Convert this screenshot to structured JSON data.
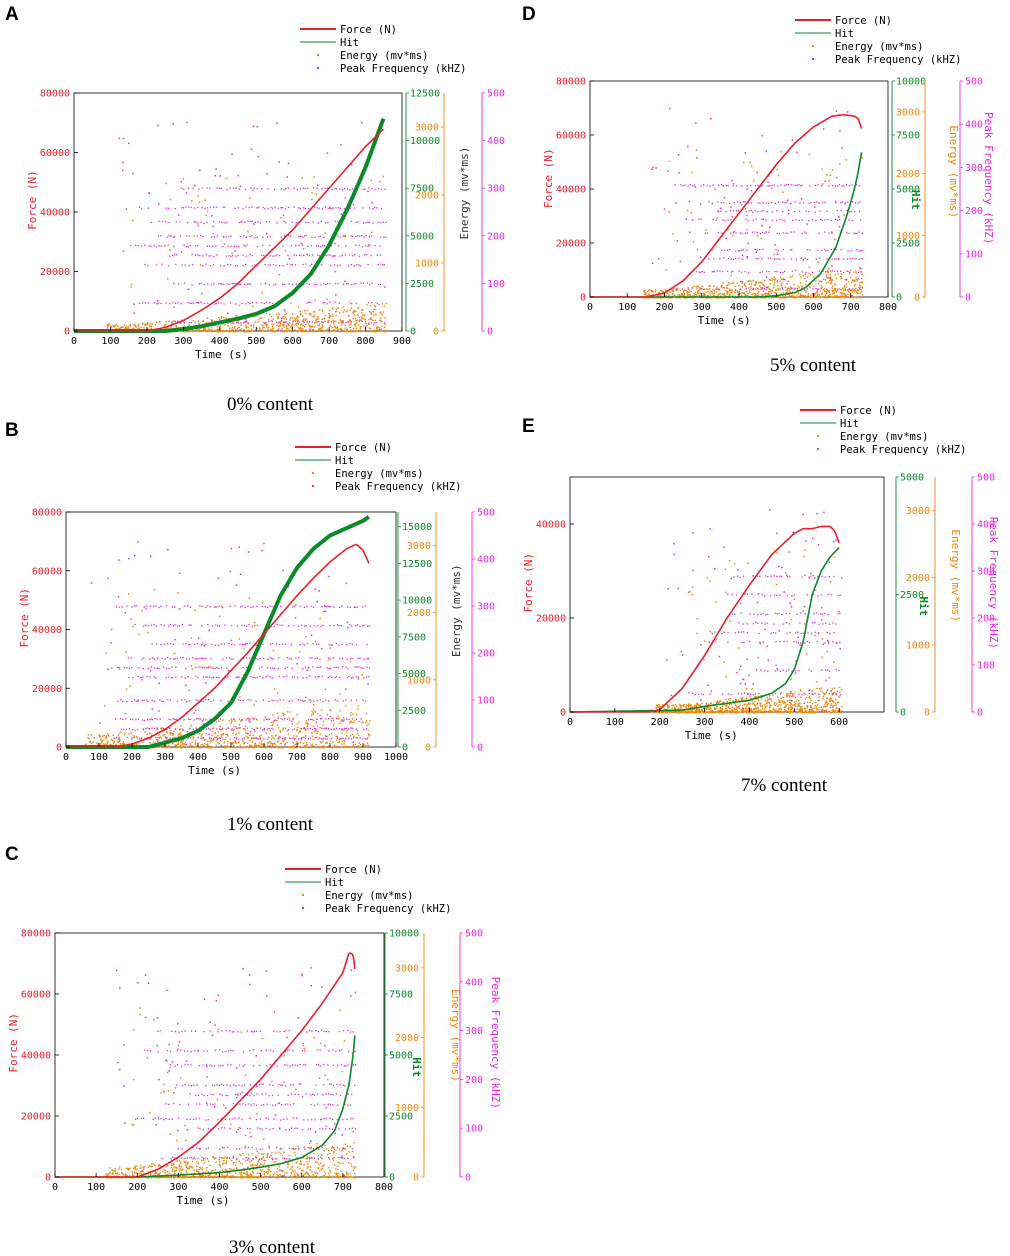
{
  "colors": {
    "force": "#e8202a",
    "hit": "#0a8a2a",
    "energy": "#f0870a",
    "peak": "#e628e6"
  },
  "chart_data": [
    {
      "letter": "A",
      "type": "line+scatter",
      "caption": "0% content",
      "legend": [
        "Force (N)",
        "Hit",
        "Energy (mv*ms)",
        "Peak Frequency (kHZ)"
      ],
      "xlabel": "Time (s)",
      "xlim": [
        0,
        900
      ],
      "xticks": [
        "0",
        "100",
        "200",
        "300",
        "400",
        "500",
        "600",
        "700",
        "800",
        "900"
      ],
      "force_label": "Force (N)",
      "force_lim": [
        0,
        80000
      ],
      "force_ticks": [
        "0",
        "20000",
        "40000",
        "60000",
        "80000"
      ],
      "hit_label": "",
      "hit_lim": [
        0,
        12500
      ],
      "hit_ticks": [
        "0",
        "2500",
        "5000",
        "7500",
        "10000",
        "12500"
      ],
      "energy_label": "Energy (mv*ms)",
      "energy_lim": [
        0,
        3500
      ],
      "energy_ticks": [
        "0",
        "1000",
        "2000",
        "3000"
      ],
      "peak_label": "",
      "peak_lim": [
        0,
        500
      ],
      "peak_ticks": [
        "0",
        "100",
        "200",
        "300",
        "400",
        "500"
      ],
      "force_series": {
        "x": [
          0,
          200,
          250,
          300,
          350,
          400,
          450,
          500,
          550,
          600,
          650,
          700,
          750,
          800,
          850
        ],
        "y": [
          0,
          0,
          1200,
          3500,
          7000,
          11000,
          16000,
          22000,
          28000,
          34000,
          41000,
          48000,
          55000,
          62000,
          68000
        ]
      },
      "hit_series": {
        "x": [
          0,
          250,
          300,
          350,
          400,
          450,
          500,
          550,
          600,
          650,
          700,
          750,
          800,
          850
        ],
        "y": [
          0,
          0,
          100,
          250,
          450,
          650,
          900,
          1300,
          2000,
          3000,
          4500,
          6400,
          8600,
          11200
        ]
      },
      "energy_band_max": 300,
      "peak_freq_bands": [
        20,
        60,
        100,
        140,
        160,
        180,
        200,
        230,
        260,
        300
      ],
      "peak_start": 150,
      "t_end": 855
    },
    {
      "letter": "B",
      "type": "line+scatter",
      "caption": "1% content",
      "legend": [
        "Force (N)",
        "Hit",
        "Energy (mv*ms)",
        "Peak Frequency (kHZ)"
      ],
      "xlabel": "Time (s)",
      "xlim": [
        0,
        1000
      ],
      "xticks": [
        "0",
        "100",
        "200",
        "300",
        "400",
        "500",
        "600",
        "700",
        "800",
        "900",
        "1000"
      ],
      "force_label": "Force (N)",
      "force_lim": [
        0,
        80000
      ],
      "force_ticks": [
        "0",
        "20000",
        "40000",
        "60000",
        "80000"
      ],
      "hit_label": "",
      "hit_lim": [
        0,
        16000
      ],
      "hit_ticks": [
        "0",
        "2500",
        "5000",
        "7500",
        "10000",
        "12500",
        "15000"
      ],
      "energy_label": "Energy (mv*ms)",
      "energy_lim": [
        0,
        3500
      ],
      "energy_ticks": [
        "0",
        "1000",
        "2000",
        "3000"
      ],
      "peak_label": "",
      "peak_lim": [
        0,
        500
      ],
      "peak_ticks": [
        "0",
        "100",
        "200",
        "300",
        "400",
        "500"
      ],
      "force_series": {
        "x": [
          0,
          150,
          200,
          250,
          300,
          350,
          400,
          450,
          500,
          550,
          600,
          650,
          700,
          750,
          800,
          850,
          880,
          900,
          920
        ],
        "y": [
          0,
          0,
          1000,
          3000,
          6000,
          10000,
          15000,
          20000,
          26000,
          32000,
          38500,
          45000,
          51500,
          57500,
          63000,
          67500,
          69000,
          67000,
          62000
        ]
      },
      "hit_series": {
        "x": [
          0,
          250,
          300,
          350,
          400,
          450,
          500,
          550,
          600,
          650,
          700,
          750,
          800,
          850,
          900,
          920
        ],
        "y": [
          0,
          0,
          300,
          600,
          1100,
          1900,
          3000,
          5100,
          7700,
          10300,
          12200,
          13500,
          14400,
          14900,
          15400,
          15700
        ]
      },
      "energy_band_max": 500,
      "peak_freq_bands": [
        20,
        40,
        60,
        100,
        150,
        170,
        190,
        220,
        260,
        300
      ],
      "peak_start": 110,
      "t_end": 920
    },
    {
      "letter": "C",
      "type": "line+scatter",
      "caption": "3% content",
      "legend": [
        "Force (N)",
        "Hit",
        "Energy (mv*ms)",
        "Peak Frequency (kHZ)"
      ],
      "xlabel": "Time (s)",
      "xlim": [
        0,
        800
      ],
      "xticks": [
        "0",
        "100",
        "200",
        "300",
        "400",
        "500",
        "600",
        "700",
        "800"
      ],
      "force_label": "Force (N)",
      "force_lim": [
        0,
        80000
      ],
      "force_ticks": [
        "0",
        "20000",
        "40000",
        "60000",
        "80000"
      ],
      "hit_label": "Hit",
      "hit_lim": [
        0,
        10000
      ],
      "hit_ticks": [
        "0",
        "2500",
        "5000",
        "7500",
        "10000"
      ],
      "energy_label": "Energy (mv*ms)",
      "energy_lim": [
        0,
        3500
      ],
      "energy_ticks": [
        "0",
        "1000",
        "2000",
        "3000"
      ],
      "peak_label": "Peak Frequency (kHZ)",
      "peak_lim": [
        0,
        500
      ],
      "peak_ticks": [
        "0",
        "100",
        "200",
        "300",
        "400",
        "500"
      ],
      "force_series": {
        "x": [
          0,
          200,
          250,
          300,
          350,
          400,
          450,
          500,
          550,
          600,
          650,
          700,
          715,
          725,
          730
        ],
        "y": [
          0,
          0,
          2500,
          6500,
          11500,
          18000,
          25000,
          32000,
          40000,
          48000,
          57000,
          67000,
          73500,
          73000,
          67000
        ]
      },
      "hit_series": {
        "x": [
          0,
          200,
          300,
          400,
          450,
          500,
          550,
          600,
          650,
          680,
          700,
          715,
          725,
          730
        ],
        "y": [
          0,
          0,
          80,
          180,
          280,
          400,
          550,
          800,
          1300,
          1900,
          2800,
          3800,
          5000,
          6000
        ]
      },
      "energy_band_max": 400,
      "peak_freq_bands": [
        40,
        60,
        100,
        120,
        150,
        170,
        190,
        230,
        260,
        300
      ],
      "peak_start": 180,
      "t_end": 730
    },
    {
      "letter": "D",
      "type": "line+scatter",
      "caption": "5% content",
      "legend": [
        "Force (N)",
        "Hit",
        "Energy (mv*ms)",
        "Peak Frequency (kHZ)"
      ],
      "xlabel": "Time (s)",
      "xlim": [
        0,
        800
      ],
      "xticks": [
        "0",
        "100",
        "200",
        "300",
        "400",
        "500",
        "600",
        "700",
        "800"
      ],
      "force_label": "Force (N)",
      "force_lim": [
        0,
        80000
      ],
      "force_ticks": [
        "0",
        "20000",
        "40000",
        "60000",
        "80000"
      ],
      "hit_label": "Hit",
      "hit_lim": [
        0,
        10000
      ],
      "hit_ticks": [
        "0",
        "2500",
        "5000",
        "7500",
        "10000"
      ],
      "energy_label": "Energy (mv*ms)",
      "energy_lim": [
        0,
        3500
      ],
      "energy_ticks": [
        "0",
        "1000",
        "2000",
        "3000"
      ],
      "peak_label": "Peak Frequency (kHZ)",
      "peak_lim": [
        0,
        500
      ],
      "peak_ticks": [
        "0",
        "100",
        "200",
        "300",
        "400",
        "500"
      ],
      "force_series": {
        "x": [
          0,
          150,
          200,
          250,
          300,
          350,
          400,
          450,
          500,
          550,
          600,
          650,
          680,
          710,
          720,
          730
        ],
        "y": [
          0,
          0,
          1500,
          6000,
          13000,
          22000,
          31000,
          40000,
          49000,
          57000,
          63000,
          67000,
          67500,
          67000,
          66000,
          62000
        ]
      },
      "hit_series": {
        "x": [
          0,
          450,
          500,
          550,
          580,
          620,
          660,
          690,
          710,
          720,
          730
        ],
        "y": [
          0,
          0,
          60,
          200,
          450,
          1100,
          2300,
          3800,
          5000,
          5800,
          6800
        ]
      },
      "energy_band_max": 350,
      "peak_freq_bands": [
        20,
        60,
        90,
        110,
        150,
        180,
        200,
        220,
        260
      ],
      "peak_start": 200,
      "t_end": 730
    },
    {
      "letter": "E",
      "type": "line+scatter",
      "caption": "7% content",
      "legend": [
        "Force (N)",
        "Hit",
        "Energy (mv*ms)",
        "Peak Frequency (kHZ)"
      ],
      "xlabel": "Time (s)",
      "xlim": [
        0,
        700
      ],
      "xticks": [
        "0",
        "100",
        "200",
        "300",
        "400",
        "500",
        "600"
      ],
      "force_label": "Force (N)",
      "force_lim": [
        0,
        50000
      ],
      "force_ticks": [
        "0",
        "20000",
        "40000"
      ],
      "hit_label": "Hit",
      "hit_lim": [
        0,
        5000
      ],
      "hit_ticks": [
        "0",
        "2500",
        "5000"
      ],
      "energy_label": "Energy (mv*ms)",
      "energy_lim": [
        0,
        3500
      ],
      "energy_ticks": [
        "0",
        "1000",
        "2000",
        "3000"
      ],
      "peak_label": "Peak Frequency (kHZ)",
      "peak_lim": [
        0,
        500
      ],
      "peak_ticks": [
        "0",
        "100",
        "200",
        "300",
        "400",
        "500"
      ],
      "force_series": {
        "x": [
          0,
          180,
          200,
          250,
          300,
          350,
          400,
          450,
          500,
          520,
          540,
          560,
          580,
          590,
          600
        ],
        "y": [
          0,
          0,
          500,
          5000,
          12000,
          20000,
          27000,
          33500,
          38000,
          39000,
          39000,
          39500,
          39500,
          38500,
          36000
        ]
      },
      "hit_series": {
        "x": [
          0,
          250,
          300,
          400,
          450,
          480,
          500,
          520,
          530,
          540,
          560,
          580,
          600
        ],
        "y": [
          0,
          40,
          120,
          250,
          400,
          600,
          900,
          1500,
          2000,
          2500,
          3000,
          3300,
          3500
        ]
      },
      "energy_band_max": 300,
      "peak_freq_bands": [
        40,
        90,
        150,
        170,
        190,
        210,
        250,
        290
      ],
      "peak_start": 250,
      "t_end": 605
    }
  ]
}
